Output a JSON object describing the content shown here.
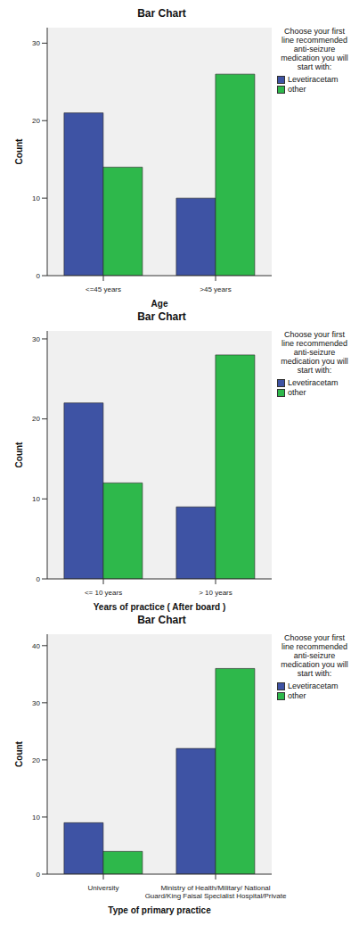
{
  "chart_data": [
    {
      "type": "bar",
      "title": "Bar Chart",
      "x_label": "Age",
      "y_label": "Count",
      "categories": [
        "<=45 years",
        ">45 years"
      ],
      "series": [
        {
          "name": "Levetiracetam",
          "color": "#3e53a4",
          "values": [
            21,
            10
          ]
        },
        {
          "name": "other",
          "color": "#2eb84b",
          "values": [
            14,
            26
          ]
        }
      ],
      "ylim": [
        0,
        32
      ],
      "yticks": [
        0,
        10,
        20,
        30
      ],
      "grid": false,
      "legend": "right",
      "legend_title": "Choose your first line recommended anti-seizure medication you will start with:"
    },
    {
      "type": "bar",
      "title": "Bar Chart",
      "x_label": "Years of practice ( After board )",
      "y_label": "Count",
      "categories": [
        "<= 10 years",
        "> 10 years"
      ],
      "series": [
        {
          "name": "Levetiracetam",
          "color": "#3e53a4",
          "values": [
            22,
            9
          ]
        },
        {
          "name": "other",
          "color": "#2eb84b",
          "values": [
            12,
            28
          ]
        }
      ],
      "ylim": [
        0,
        31
      ],
      "yticks": [
        0,
        10,
        20,
        30
      ],
      "grid": false,
      "legend": "right",
      "legend_title": "Choose your first line recommended anti-seizure medication you will start with:"
    },
    {
      "type": "bar",
      "title": "Bar Chart",
      "x_label": "Type of primary practice",
      "y_label": "Count",
      "categories": [
        "University",
        "Ministry of Health/Military/ National Guard/King Faisal Specialist Hospital/Private"
      ],
      "series": [
        {
          "name": "Levetiracetam",
          "color": "#3e53a4",
          "values": [
            9,
            22
          ]
        },
        {
          "name": "other",
          "color": "#2eb84b",
          "values": [
            4,
            36
          ]
        }
      ],
      "ylim": [
        0,
        42
      ],
      "yticks": [
        0,
        10,
        20,
        30,
        40
      ],
      "grid": false,
      "legend": "right",
      "legend_title": "Choose your first line recommended anti-seizure medication you will start with:"
    }
  ]
}
